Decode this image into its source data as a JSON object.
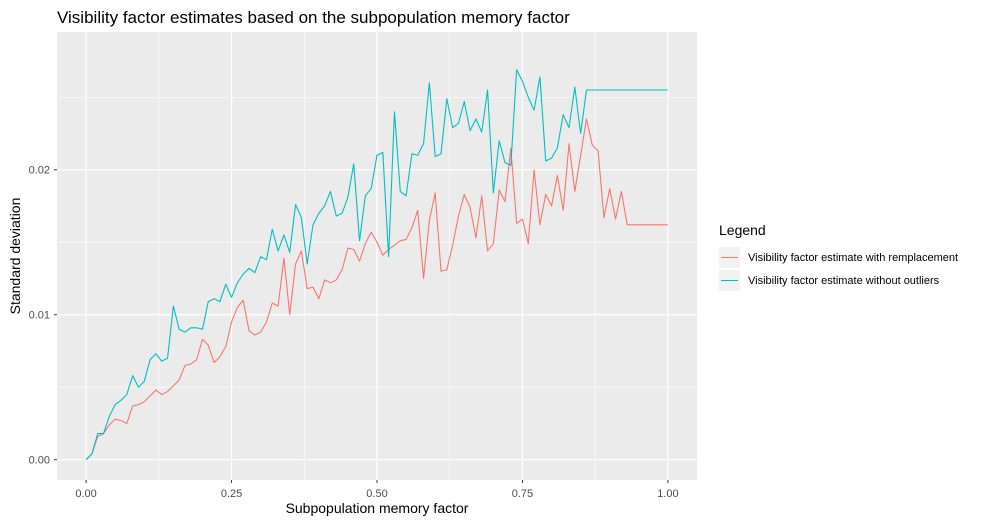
{
  "chart_data": {
    "type": "line",
    "title": "Visibility factor estimates based on the subpopulation memory factor",
    "xlabel": "Subpopulation memory factor",
    "ylabel": "Standard deviation",
    "xlim": [
      -0.05,
      1.05
    ],
    "ylim": [
      -0.0014,
      0.0295
    ],
    "x_ticks": [
      0.0,
      0.25,
      0.5,
      0.75,
      1.0
    ],
    "x_tick_labels": [
      "0.00",
      "0.25",
      "0.50",
      "0.75",
      "1.00"
    ],
    "y_ticks": [
      0.0,
      0.01,
      0.02
    ],
    "y_tick_labels": [
      "0.00",
      "0.01",
      "0.02"
    ],
    "grid": true,
    "legend": {
      "title": "Legend",
      "position": "right"
    },
    "x": [
      0.0,
      0.01,
      0.02,
      0.03,
      0.04,
      0.05,
      0.06,
      0.07,
      0.08,
      0.09,
      0.1,
      0.11,
      0.12,
      0.13,
      0.14,
      0.15,
      0.16,
      0.17,
      0.18,
      0.19,
      0.2,
      0.21,
      0.22,
      0.23,
      0.24,
      0.25,
      0.26,
      0.27,
      0.28,
      0.29,
      0.3,
      0.31,
      0.32,
      0.33,
      0.34,
      0.35,
      0.36,
      0.37,
      0.38,
      0.39,
      0.4,
      0.41,
      0.42,
      0.43,
      0.44,
      0.45,
      0.46,
      0.47,
      0.48,
      0.49,
      0.5,
      0.51,
      0.52,
      0.53,
      0.54,
      0.55,
      0.56,
      0.57,
      0.58,
      0.59,
      0.6,
      0.61,
      0.62,
      0.63,
      0.64,
      0.65,
      0.66,
      0.67,
      0.68,
      0.69,
      0.7,
      0.71,
      0.72,
      0.73,
      0.74,
      0.75,
      0.76,
      0.77,
      0.78,
      0.79,
      0.8,
      0.81,
      0.82,
      0.83,
      0.84,
      0.85,
      0.86,
      0.87,
      0.88,
      0.89,
      0.9,
      0.91,
      0.92,
      0.93,
      0.94,
      0.95,
      0.96,
      0.97,
      0.98,
      0.99,
      1.0
    ],
    "series": [
      {
        "name": "Visibility factor estimate with remplacement",
        "color": "#F8766D",
        "values": [
          0.0,
          0.0004,
          0.0016,
          0.0018,
          0.0024,
          0.0028,
          0.0027,
          0.0025,
          0.0037,
          0.0038,
          0.004,
          0.0044,
          0.0048,
          0.0045,
          0.0047,
          0.0051,
          0.0055,
          0.0065,
          0.0066,
          0.0069,
          0.0083,
          0.0079,
          0.0067,
          0.0071,
          0.0078,
          0.0095,
          0.0105,
          0.011,
          0.0089,
          0.0086,
          0.0088,
          0.0095,
          0.0108,
          0.0106,
          0.0139,
          0.01,
          0.0135,
          0.0144,
          0.0118,
          0.0119,
          0.0111,
          0.0124,
          0.0122,
          0.0124,
          0.0131,
          0.0146,
          0.0145,
          0.0137,
          0.0149,
          0.0157,
          0.015,
          0.0141,
          0.0145,
          0.0148,
          0.0151,
          0.0152,
          0.016,
          0.0172,
          0.0125,
          0.0165,
          0.0184,
          0.013,
          0.0131,
          0.0148,
          0.0168,
          0.0183,
          0.0174,
          0.0153,
          0.0182,
          0.0144,
          0.0149,
          0.0186,
          0.0178,
          0.0215,
          0.0163,
          0.0166,
          0.0149,
          0.02,
          0.0162,
          0.0183,
          0.0175,
          0.0196,
          0.0172,
          0.0218,
          0.0185,
          0.021,
          0.0235,
          0.0217,
          0.0213,
          0.0167,
          0.0187,
          0.0166,
          0.0185,
          0.0162,
          0.0162,
          0.0162,
          0.0162,
          0.0162,
          0.0162,
          0.0162,
          0.0162
        ]
      },
      {
        "name": "Visibility factor estimate without outliers",
        "color": "#00BFC4",
        "values": [
          0.0,
          0.0004,
          0.0018,
          0.0018,
          0.003,
          0.0038,
          0.0041,
          0.0045,
          0.0058,
          0.005,
          0.0054,
          0.0069,
          0.0073,
          0.0068,
          0.007,
          0.0106,
          0.009,
          0.0088,
          0.0091,
          0.0091,
          0.009,
          0.0109,
          0.0111,
          0.0109,
          0.0121,
          0.0112,
          0.0122,
          0.0128,
          0.0132,
          0.0129,
          0.014,
          0.0138,
          0.0159,
          0.0144,
          0.0155,
          0.0143,
          0.0176,
          0.0167,
          0.0135,
          0.0162,
          0.017,
          0.0175,
          0.0185,
          0.0168,
          0.017,
          0.0181,
          0.0204,
          0.0151,
          0.0182,
          0.0187,
          0.021,
          0.0212,
          0.014,
          0.024,
          0.0185,
          0.0182,
          0.0211,
          0.021,
          0.0218,
          0.026,
          0.0209,
          0.0211,
          0.0249,
          0.0229,
          0.0232,
          0.0247,
          0.0227,
          0.0235,
          0.0226,
          0.0255,
          0.0184,
          0.022,
          0.0205,
          0.0203,
          0.0269,
          0.0261,
          0.025,
          0.0241,
          0.0264,
          0.0206,
          0.0208,
          0.0215,
          0.0238,
          0.0229,
          0.0257,
          0.0225,
          0.0255,
          0.0255,
          0.0255,
          0.0255,
          0.0255,
          0.0255,
          0.0255,
          0.0255,
          0.0255,
          0.0255,
          0.0255,
          0.0255,
          0.0255,
          0.0255,
          0.0255
        ]
      }
    ]
  }
}
